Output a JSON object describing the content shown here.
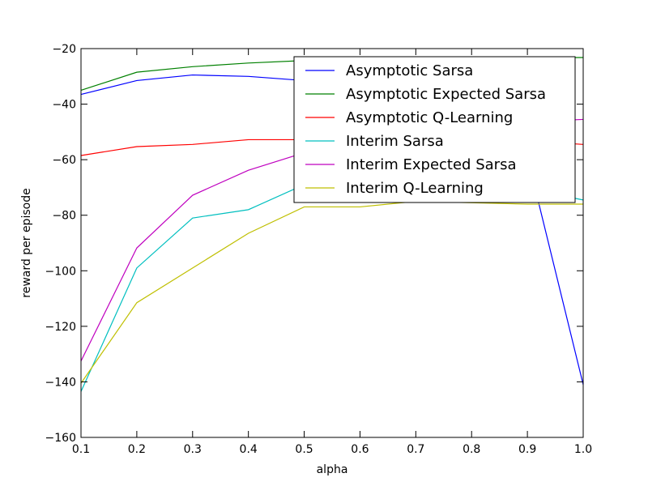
{
  "chart_data": {
    "type": "line",
    "xlabel": "alpha",
    "ylabel": "reward per episode",
    "xlim": [
      0.1,
      1.0
    ],
    "ylim": [
      -160,
      -20
    ],
    "xticks": [
      "0.1",
      "0.2",
      "0.3",
      "0.4",
      "0.5",
      "0.6",
      "0.7",
      "0.8",
      "0.9",
      "1.0"
    ],
    "yticks": [
      "−160",
      "−140",
      "−120",
      "−100",
      "−80",
      "−60",
      "−40",
      "−20"
    ],
    "xtick_values": [
      0.1,
      0.2,
      0.3,
      0.4,
      0.5,
      0.6,
      0.7,
      0.8,
      0.9,
      1.0
    ],
    "ytick_values": [
      -160,
      -140,
      -120,
      -100,
      -80,
      -60,
      -40,
      -20
    ],
    "grid": false,
    "legend_position": "upper right",
    "x": [
      0.1,
      0.2,
      0.3,
      0.4,
      0.5,
      0.6,
      0.7,
      0.8,
      0.9,
      1.0
    ],
    "series": [
      {
        "name": "Asymptotic Sarsa",
        "color": "#0000ff",
        "values": [
          -36.5,
          -31.5,
          -29.5,
          -30.0,
          -31.5,
          -33.0,
          -36.0,
          -41.0,
          -59.0,
          -141.0
        ]
      },
      {
        "name": "Asymptotic Expected Sarsa",
        "color": "#008000",
        "values": [
          -35.0,
          -28.5,
          -26.5,
          -25.2,
          -24.3,
          -23.9,
          -23.6,
          -23.4,
          -23.3,
          -23.2
        ]
      },
      {
        "name": "Asymptotic Q-Learning",
        "color": "#ff0000",
        "values": [
          -58.5,
          -55.3,
          -54.5,
          -52.8,
          -52.8,
          -52.9,
          -53.0,
          -53.1,
          -53.2,
          -54.5
        ]
      },
      {
        "name": "Interim Sarsa",
        "color": "#00bfbf",
        "values": [
          -143.5,
          -99.0,
          -81.0,
          -78.0,
          -69.0,
          -66.0,
          -67.0,
          -68.5,
          -70.5,
          -74.5
        ]
      },
      {
        "name": "Interim Expected Sarsa",
        "color": "#bf00bf",
        "values": [
          -132.5,
          -91.8,
          -72.8,
          -63.8,
          -57.5,
          -52.5,
          -49.5,
          -47.5,
          -46.3,
          -45.5
        ]
      },
      {
        "name": "Interim Q-Learning",
        "color": "#bfbf00",
        "values": [
          -140.5,
          -111.5,
          -99.0,
          -86.5,
          -77.0,
          -77.0,
          -75.0,
          -75.5,
          -76.0,
          -76.0
        ]
      }
    ]
  }
}
